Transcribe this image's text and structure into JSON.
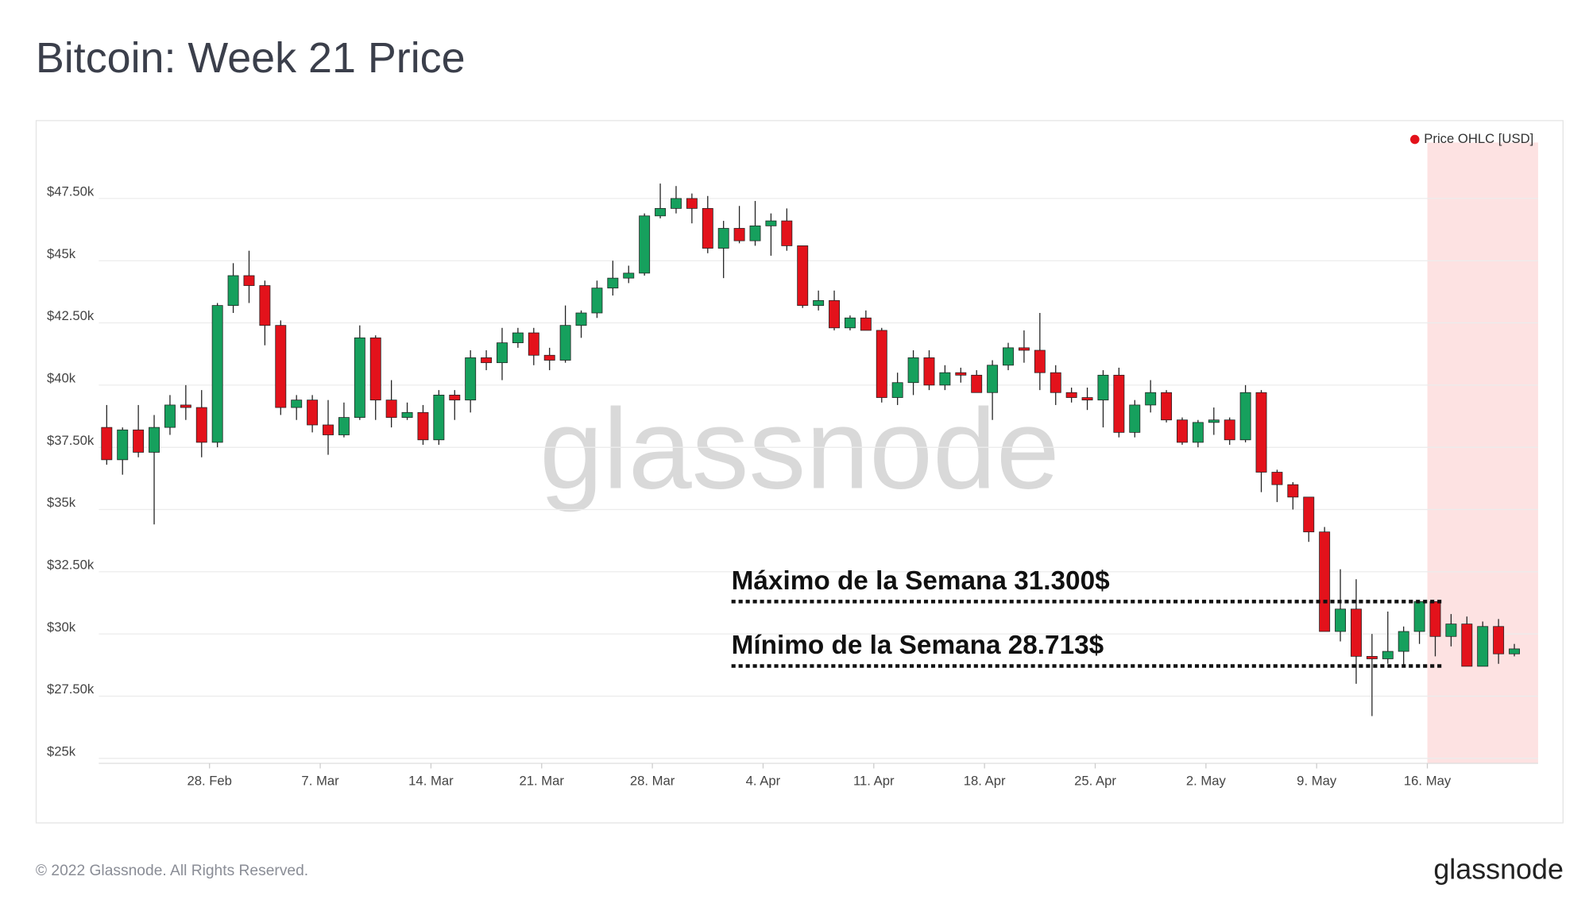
{
  "chart_data": {
    "type": "candlestick",
    "title": "Bitcoin: Week 21 Price",
    "watermark": "glassnode",
    "footer": "© 2022 Glassnode. All Rights Reserved.",
    "logo": "glassnode",
    "x": [
      "02-21",
      "02-22",
      "02-23",
      "02-24",
      "02-25",
      "02-26",
      "02-27",
      "02-28",
      "03-01",
      "03-02",
      "03-03",
      "03-04",
      "03-05",
      "03-06",
      "03-07",
      "03-08",
      "03-09",
      "03-10",
      "03-11",
      "03-12",
      "03-13",
      "03-14",
      "03-15",
      "03-16",
      "03-17",
      "03-18",
      "03-19",
      "03-20",
      "03-21",
      "03-22",
      "03-23",
      "03-24",
      "03-25",
      "03-26",
      "03-27",
      "03-28",
      "03-29",
      "03-30",
      "03-31",
      "04-01",
      "04-02",
      "04-03",
      "04-04",
      "04-05",
      "04-06",
      "04-07",
      "04-08",
      "04-09",
      "04-10",
      "04-11",
      "04-12",
      "04-13",
      "04-14",
      "04-15",
      "04-16",
      "04-17",
      "04-18",
      "04-19",
      "04-20",
      "04-21",
      "04-22",
      "04-23",
      "04-24",
      "04-25",
      "04-26",
      "04-27",
      "04-28",
      "04-29",
      "04-30",
      "05-01",
      "05-02",
      "05-03",
      "05-04",
      "05-05",
      "05-06",
      "05-07",
      "05-08",
      "05-09",
      "05-10",
      "05-11",
      "05-12",
      "05-13",
      "05-14",
      "05-15",
      "05-16",
      "05-17",
      "05-18",
      "05-19",
      "05-20",
      "05-21"
    ],
    "series": [
      {
        "name": "Price OHLC [USD]",
        "color": "#e3121b",
        "up_color": "#16a05d",
        "down_color": "#e3121b",
        "open": [
          38300,
          37000,
          38200,
          37300,
          38300,
          39200,
          39100,
          37700,
          43200,
          44400,
          44000,
          42400,
          39100,
          39400,
          38400,
          38000,
          38700,
          41900,
          39400,
          38700,
          38900,
          37800,
          39600,
          39400,
          41100,
          40900,
          41700,
          42100,
          41200,
          41000,
          42400,
          42900,
          43900,
          44300,
          44500,
          46800,
          47100,
          47500,
          47100,
          45500,
          46300,
          45800,
          46400,
          46600,
          45600,
          43200,
          43400,
          42300,
          42700,
          42200,
          39500,
          40100,
          41100,
          40000,
          40500,
          40400,
          39700,
          40800,
          41500,
          41400,
          40500,
          39700,
          39500,
          39400,
          40400,
          38100,
          39200,
          39700,
          38600,
          37700,
          38500,
          38600,
          37800,
          39700,
          36500,
          36000,
          35500,
          34100,
          30100,
          31000,
          29100,
          29000,
          29300,
          30100,
          31300,
          29900,
          30400,
          28700,
          30300,
          29200
        ],
        "high": [
          39200,
          38300,
          39200,
          38800,
          39600,
          40000,
          39800,
          43300,
          44900,
          45400,
          44200,
          42600,
          39600,
          39600,
          39400,
          39300,
          42400,
          42000,
          40200,
          39300,
          39200,
          39800,
          39800,
          41400,
          41400,
          42300,
          42300,
          42300,
          41500,
          43200,
          43000,
          44200,
          45000,
          44800,
          46900,
          48100,
          48000,
          47700,
          47600,
          46600,
          47200,
          47400,
          46900,
          47100,
          45600,
          43800,
          43800,
          42800,
          43000,
          42300,
          40500,
          41400,
          41400,
          40800,
          40700,
          40600,
          41000,
          41700,
          42200,
          42900,
          40800,
          39900,
          39900,
          40600,
          40700,
          39400,
          40200,
          39800,
          38700,
          38600,
          39100,
          38700,
          40000,
          39800,
          36600,
          36100,
          35500,
          34300,
          32600,
          32200,
          30000,
          30900,
          30300,
          31300,
          31300,
          30800,
          30700,
          30500,
          30600,
          29600
        ],
        "low": [
          36800,
          36400,
          37100,
          34400,
          38000,
          38600,
          37100,
          37500,
          42900,
          43300,
          41600,
          38800,
          38600,
          38100,
          37200,
          37900,
          38600,
          38600,
          38300,
          38600,
          37600,
          37600,
          38600,
          38900,
          40600,
          40200,
          41500,
          40800,
          40600,
          40900,
          41900,
          42700,
          43600,
          44100,
          44400,
          46700,
          46900,
          46500,
          45300,
          44300,
          45700,
          45600,
          45200,
          45400,
          43100,
          43000,
          42200,
          42200,
          42200,
          39300,
          39200,
          39600,
          39800,
          39800,
          40100,
          39700,
          38600,
          40600,
          40900,
          39800,
          39200,
          39300,
          39000,
          38300,
          37900,
          37900,
          38900,
          38500,
          37600,
          37500,
          38000,
          37600,
          37700,
          35700,
          35300,
          35000,
          33700,
          30100,
          29700,
          28000,
          26700,
          28800,
          28700,
          29600,
          29100,
          29500,
          28700,
          28700,
          28800,
          29100
        ],
        "close": [
          37000,
          38200,
          37300,
          38300,
          39200,
          39100,
          37700,
          43200,
          44400,
          44000,
          42400,
          39100,
          39400,
          38400,
          38000,
          38700,
          41900,
          39400,
          38700,
          38900,
          37800,
          39600,
          39400,
          41100,
          40900,
          41700,
          42100,
          41200,
          41000,
          42400,
          42900,
          43900,
          44300,
          44500,
          46800,
          47100,
          47500,
          47100,
          45500,
          46300,
          45800,
          46400,
          46600,
          45600,
          43200,
          43400,
          42300,
          42700,
          42200,
          39500,
          40100,
          41100,
          40000,
          40500,
          40400,
          39700,
          40800,
          41500,
          41400,
          40500,
          39700,
          39500,
          39400,
          40400,
          38100,
          39200,
          39700,
          38600,
          37700,
          38500,
          38600,
          37800,
          39700,
          36500,
          36000,
          35500,
          34100,
          30100,
          31000,
          29100,
          29000,
          29300,
          30100,
          31300,
          29900,
          30400,
          28700,
          30300,
          29200,
          29400
        ]
      }
    ],
    "xlim": [
      "02-21",
      "05-23"
    ],
    "xticks": [
      {
        "value": "02-28",
        "label": "28. Feb"
      },
      {
        "value": "03-07",
        "label": "7. Mar"
      },
      {
        "value": "03-14",
        "label": "14. Mar"
      },
      {
        "value": "03-21",
        "label": "21. Mar"
      },
      {
        "value": "03-28",
        "label": "28. Mar"
      },
      {
        "value": "04-04",
        "label": "4. Apr"
      },
      {
        "value": "04-11",
        "label": "11. Apr"
      },
      {
        "value": "04-18",
        "label": "18. Apr"
      },
      {
        "value": "04-25",
        "label": "25. Apr"
      },
      {
        "value": "05-02",
        "label": "2. May"
      },
      {
        "value": "05-09",
        "label": "9. May"
      },
      {
        "value": "05-16",
        "label": "16. May"
      }
    ],
    "ylim": [
      24800,
      49750
    ],
    "yticks": [
      {
        "value": 25000,
        "label": "$25k"
      },
      {
        "value": 27500,
        "label": "$27.50k"
      },
      {
        "value": 30000,
        "label": "$30k"
      },
      {
        "value": 32500,
        "label": "$32.50k"
      },
      {
        "value": 35000,
        "label": "$35k"
      },
      {
        "value": 37500,
        "label": "$37.50k"
      },
      {
        "value": 40000,
        "label": "$40k"
      },
      {
        "value": 42500,
        "label": "$42.50k"
      },
      {
        "value": 45000,
        "label": "$45k"
      },
      {
        "value": 47500,
        "label": "$47.50k"
      }
    ],
    "grid": true,
    "legend": "top-right",
    "highlight_from": "05-16",
    "highlight_color": "#fde2e2",
    "annotations": [
      {
        "text": "Máximo de la Semana 31.300$",
        "value": 31300,
        "from": "04-02",
        "to": "05-17"
      },
      {
        "text": "Mínimo de la Semana 28.713$",
        "value": 28713,
        "from": "04-02",
        "to": "05-17"
      }
    ]
  }
}
